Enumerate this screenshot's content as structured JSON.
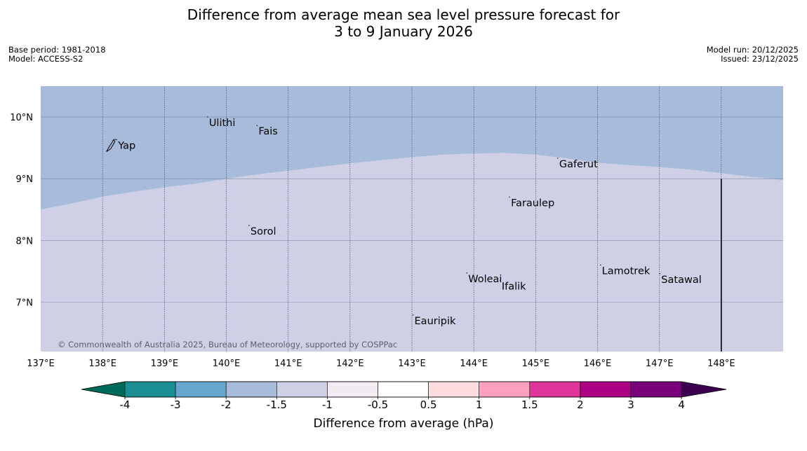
{
  "title": {
    "line1": "Difference from average mean sea level pressure forecast for",
    "line2": "3 to 9 January 2026"
  },
  "meta": {
    "base_period": "Base period: 1981-2018",
    "model": "Model: ACCESS-S2",
    "model_run": "Model run: 20/12/2025",
    "issued": "Issued: 23/12/2025"
  },
  "map": {
    "lon_range": [
      137,
      149
    ],
    "lat_range": [
      6.2,
      10.5
    ],
    "lon_ticks": [
      137,
      138,
      139,
      140,
      141,
      142,
      143,
      144,
      145,
      146,
      147,
      148
    ],
    "lon_tick_labels": [
      "137°E",
      "138°E",
      "139°E",
      "140°E",
      "141°E",
      "142°E",
      "143°E",
      "144°E",
      "145°E",
      "146°E",
      "147°E",
      "148°E"
    ],
    "lat_ticks": [
      7,
      8,
      9,
      10
    ],
    "lat_tick_labels": [
      "7°N",
      "8°N",
      "9°N",
      "10°N"
    ],
    "colors": {
      "band_minus_1_5_to_minus_1": "#a7bbdb",
      "band_minus_1_to_minus_0_5": "#cfd0e6"
    },
    "boundary_points": [
      [
        137.0,
        8.5
      ],
      [
        137.5,
        8.6
      ],
      [
        138.0,
        8.71
      ],
      [
        138.5,
        8.79
      ],
      [
        139.0,
        8.86
      ],
      [
        139.5,
        8.92
      ],
      [
        140.0,
        9.0
      ],
      [
        140.5,
        9.07
      ],
      [
        141.0,
        9.13
      ],
      [
        141.5,
        9.19
      ],
      [
        142.0,
        9.25
      ],
      [
        142.5,
        9.3
      ],
      [
        143.0,
        9.35
      ],
      [
        143.5,
        9.39
      ],
      [
        144.0,
        9.41
      ],
      [
        144.5,
        9.42
      ],
      [
        145.0,
        9.39
      ],
      [
        145.5,
        9.33
      ],
      [
        146.0,
        9.26
      ],
      [
        146.5,
        9.22
      ],
      [
        147.0,
        9.19
      ],
      [
        147.5,
        9.15
      ],
      [
        148.0,
        9.09
      ],
      [
        148.5,
        9.03
      ],
      [
        149.0,
        8.98
      ]
    ],
    "places": [
      {
        "name": "Yap",
        "lon": 138.25,
        "lat": 9.53
      },
      {
        "name": "Ulithi",
        "lon": 139.72,
        "lat": 9.9
      },
      {
        "name": "Fais",
        "lon": 140.52,
        "lat": 9.76
      },
      {
        "name": "Gaferut",
        "lon": 145.38,
        "lat": 9.23
      },
      {
        "name": "Faraulep",
        "lon": 144.6,
        "lat": 8.6
      },
      {
        "name": "Sorol",
        "lon": 140.39,
        "lat": 8.14
      },
      {
        "name": "Lamotrek",
        "lon": 146.07,
        "lat": 7.5
      },
      {
        "name": "Satawal",
        "lon": 147.03,
        "lat": 7.36
      },
      {
        "name": "Woleai",
        "lon": 143.91,
        "lat": 7.37
      },
      {
        "name": "Ifalik",
        "lon": 144.45,
        "lat": 7.25
      },
      {
        "name": "Eauripik",
        "lon": 143.04,
        "lat": 6.69
      }
    ],
    "boundary_line": {
      "lon": 148.0,
      "lat_from": 6.2,
      "lat_to": 9.0
    },
    "copyright": "© Commonwealth of Australia 2025, Bureau of Meteorology, supported by COSPPac"
  },
  "colorbar": {
    "title": "Difference from average (hPa)",
    "tick_labels": [
      "-4",
      "-3",
      "-2",
      "-1.5",
      "-1",
      "-0.5",
      "0.5",
      "1",
      "1.5",
      "2",
      "3",
      "4"
    ],
    "under_color": "#006a5a",
    "over_color": "#3d0050",
    "colors": [
      "#1a9094",
      "#67a7cf",
      "#a7bbdb",
      "#cfd0e6",
      "#f2ebf1",
      "#ffffff",
      "#ffdcdd",
      "#fba0bd",
      "#df3499",
      "#ac0086",
      "#79007b"
    ]
  }
}
